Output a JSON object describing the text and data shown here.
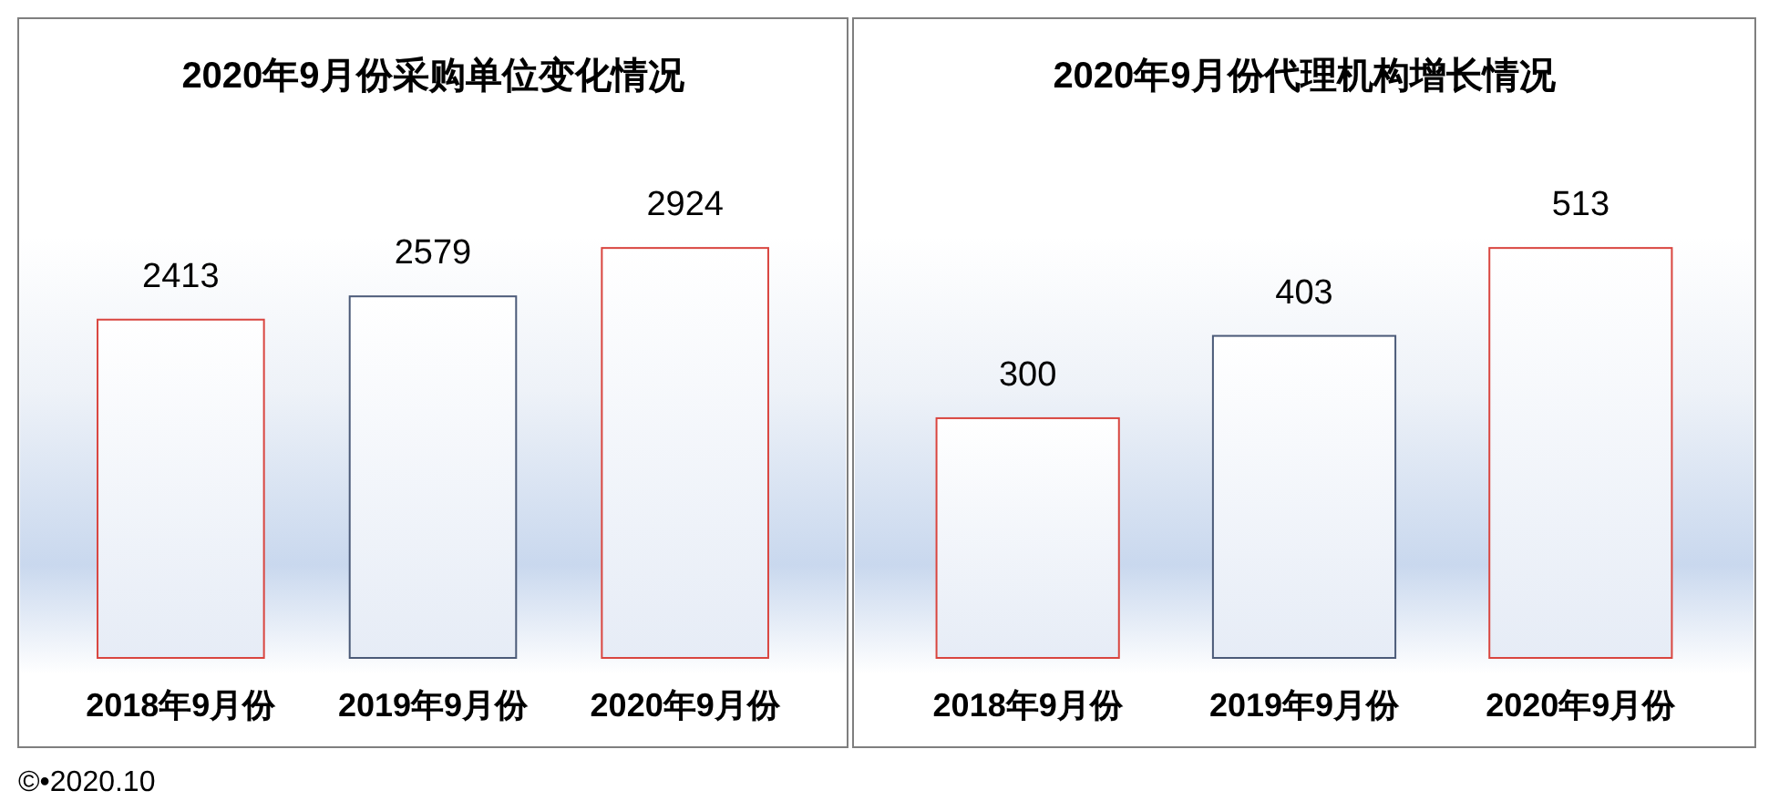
{
  "chart_data": [
    {
      "type": "bar",
      "title": "2020年9月份采购单位变化情况",
      "categories": [
        "2018年9月份",
        "2019年9月份",
        "2020年9月份"
      ],
      "values": [
        2413,
        2579,
        2924
      ],
      "colors": [
        "#d9453f",
        "#4b5a78",
        "#d9453f"
      ],
      "data_labels": true,
      "annotations": [
        "©•2020.10"
      ]
    },
    {
      "type": "bar",
      "title": "2020年9月份代理机构增长情况",
      "categories": [
        "2018年9月份",
        "2019年9月份",
        "2020年9月份"
      ],
      "values": [
        300,
        403,
        513
      ],
      "colors": [
        "#d9453f",
        "#4b5a78",
        "#d9453f"
      ],
      "data_labels": true
    }
  ]
}
